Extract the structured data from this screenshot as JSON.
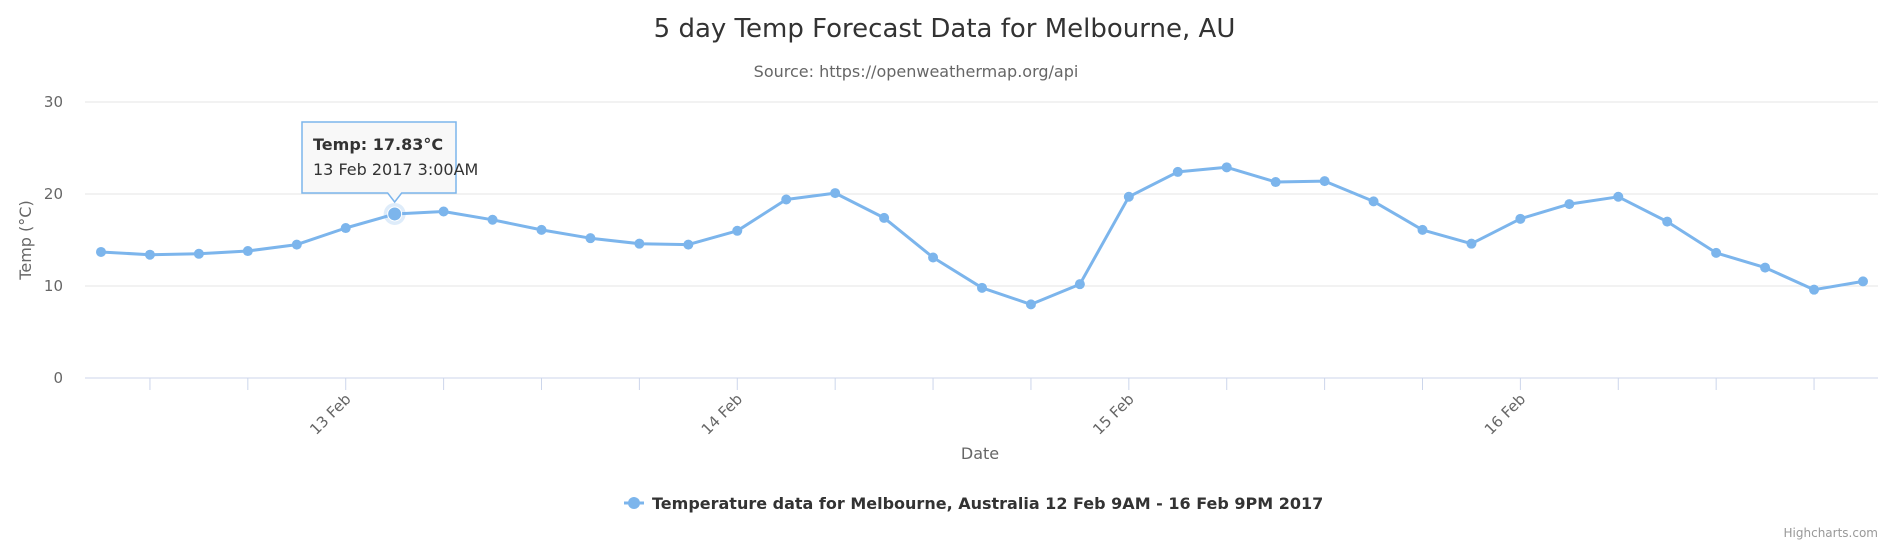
{
  "chart_data": {
    "type": "line",
    "title": "5 day Temp Forecast Data for Melbourne, AU",
    "subtitle": "Source: https://openweathermap.org/api",
    "xlabel": "Date",
    "ylabel": "Temp (°C)",
    "ylim": [
      0,
      30
    ],
    "yticks": [
      0,
      10,
      20,
      30
    ],
    "grid": true,
    "legend_position": "bottom-center",
    "x_tick_labels": [
      {
        "label": "13 Feb",
        "date": "2017-02-13T00:00"
      },
      {
        "label": "14 Feb",
        "date": "2017-02-14T00:00"
      },
      {
        "label": "15 Feb",
        "date": "2017-02-15T00:00"
      },
      {
        "label": "16 Feb",
        "date": "2017-02-16T00:00"
      }
    ],
    "series": [
      {
        "name": "Temperature data for Melbourne, Australia 12 Feb 9AM - 16 Feb 9PM 2017",
        "color": "#7cb5ec",
        "x": [
          "2017-02-12T09:00",
          "2017-02-12T12:00",
          "2017-02-12T15:00",
          "2017-02-12T18:00",
          "2017-02-12T21:00",
          "2017-02-13T00:00",
          "2017-02-13T03:00",
          "2017-02-13T06:00",
          "2017-02-13T09:00",
          "2017-02-13T12:00",
          "2017-02-13T15:00",
          "2017-02-13T18:00",
          "2017-02-13T21:00",
          "2017-02-14T00:00",
          "2017-02-14T03:00",
          "2017-02-14T06:00",
          "2017-02-14T09:00",
          "2017-02-14T12:00",
          "2017-02-14T15:00",
          "2017-02-14T18:00",
          "2017-02-14T21:00",
          "2017-02-15T00:00",
          "2017-02-15T03:00",
          "2017-02-15T06:00",
          "2017-02-15T09:00",
          "2017-02-15T12:00",
          "2017-02-15T15:00",
          "2017-02-15T18:00",
          "2017-02-15T21:00",
          "2017-02-16T00:00",
          "2017-02-16T03:00",
          "2017-02-16T06:00",
          "2017-02-16T09:00",
          "2017-02-16T12:00",
          "2017-02-16T15:00",
          "2017-02-16T18:00",
          "2017-02-16T21:00"
        ],
        "values": [
          13.7,
          13.4,
          13.5,
          13.8,
          14.5,
          16.3,
          17.83,
          18.1,
          17.2,
          16.1,
          15.2,
          14.6,
          14.5,
          16.0,
          19.4,
          20.1,
          17.4,
          13.1,
          9.8,
          8.0,
          10.2,
          19.7,
          22.4,
          22.9,
          21.3,
          21.4,
          19.2,
          16.1,
          14.6,
          17.3,
          18.9,
          19.7,
          17.0,
          13.6,
          12.0,
          9.6,
          10.5
        ]
      }
    ],
    "tooltip": {
      "label": "Temp",
      "value": "17.83°C",
      "date": "13 Feb 2017 3:00AM"
    },
    "credits": "Highcharts.com"
  }
}
